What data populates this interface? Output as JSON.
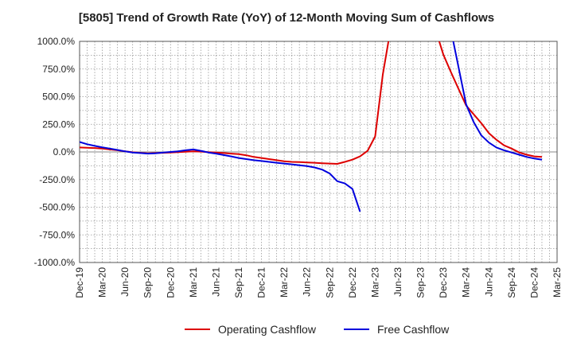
{
  "chart_data": {
    "type": "line",
    "title": "[5805]  Trend of Growth Rate (YoY) of 12-Month Moving Sum of Cashflows",
    "xlabel": "",
    "ylabel": "",
    "ylim": [
      -1000,
      1000
    ],
    "y_ticks": [
      "1000.0%",
      "750.0%",
      "500.0%",
      "250.0%",
      "0.0%",
      "-250.0%",
      "-500.0%",
      "-750.0%",
      "-1000.0%"
    ],
    "y_tick_values": [
      1000,
      750,
      500,
      250,
      0,
      -250,
      -500,
      -750,
      -1000
    ],
    "x_ticks": [
      "Dec-19",
      "Mar-20",
      "Jun-20",
      "Sep-20",
      "Dec-20",
      "Mar-21",
      "Jun-21",
      "Sep-21",
      "Dec-21",
      "Mar-22",
      "Jun-22",
      "Sep-22",
      "Dec-22",
      "Mar-23",
      "Jun-23",
      "Sep-23",
      "Dec-23",
      "Mar-24",
      "Jun-24",
      "Sep-24",
      "Dec-24",
      "Mar-25"
    ],
    "grid": true,
    "legend_position": "bottom",
    "series": [
      {
        "name": "Operating Cashflow",
        "color": "#dd0000",
        "points": [
          [
            "Dec-19",
            40
          ],
          [
            "Jan-20",
            38
          ],
          [
            "Feb-20",
            35
          ],
          [
            "Mar-20",
            30
          ],
          [
            "Apr-20",
            22
          ],
          [
            "May-20",
            15
          ],
          [
            "Jun-20",
            5
          ],
          [
            "Jul-20",
            -3
          ],
          [
            "Aug-20",
            -8
          ],
          [
            "Sep-20",
            -12
          ],
          [
            "Oct-20",
            -10
          ],
          [
            "Nov-20",
            -8
          ],
          [
            "Dec-20",
            -5
          ],
          [
            "Jan-21",
            -2
          ],
          [
            "Feb-21",
            2
          ],
          [
            "Mar-21",
            5
          ],
          [
            "Apr-21",
            3
          ],
          [
            "May-21",
            -2
          ],
          [
            "Jun-21",
            -5
          ],
          [
            "Jul-21",
            -10
          ],
          [
            "Aug-21",
            -15
          ],
          [
            "Sep-21",
            -20
          ],
          [
            "Oct-21",
            -30
          ],
          [
            "Nov-21",
            -45
          ],
          [
            "Dec-21",
            -55
          ],
          [
            "Jan-22",
            -65
          ],
          [
            "Feb-22",
            -75
          ],
          [
            "Mar-22",
            -85
          ],
          [
            "Apr-22",
            -90
          ],
          [
            "May-22",
            -92
          ],
          [
            "Jun-22",
            -95
          ],
          [
            "Jul-22",
            -98
          ],
          [
            "Aug-22",
            -102
          ],
          [
            "Sep-22",
            -105
          ],
          [
            "Oct-22",
            -108
          ],
          [
            "Nov-22",
            -90
          ],
          [
            "Dec-22",
            -70
          ],
          [
            "Jan-23",
            -40
          ],
          [
            "Feb-23",
            10
          ],
          [
            "Mar-23",
            140
          ],
          [
            "Apr-23",
            700
          ],
          [
            "May-23",
            1100
          ]
        ]
      },
      {
        "name": "Operating Cashflow",
        "color": "#dd0000",
        "points": [
          [
            "Nov-23",
            1100
          ],
          [
            "Dec-23",
            880
          ],
          [
            "Jan-24",
            720
          ],
          [
            "Feb-24",
            570
          ],
          [
            "Mar-24",
            420
          ],
          [
            "Apr-24",
            340
          ],
          [
            "May-24",
            260
          ],
          [
            "Jun-24",
            170
          ],
          [
            "Jul-24",
            110
          ],
          [
            "Aug-24",
            60
          ],
          [
            "Sep-24",
            30
          ],
          [
            "Oct-24",
            -5
          ],
          [
            "Nov-24",
            -25
          ],
          [
            "Dec-24",
            -40
          ],
          [
            "Jan-25",
            -45
          ]
        ]
      },
      {
        "name": "Free Cashflow",
        "color": "#0000dd",
        "points": [
          [
            "Dec-19",
            90
          ],
          [
            "Jan-20",
            70
          ],
          [
            "Feb-20",
            55
          ],
          [
            "Mar-20",
            42
          ],
          [
            "Apr-20",
            30
          ],
          [
            "May-20",
            18
          ],
          [
            "Jun-20",
            5
          ],
          [
            "Jul-20",
            -5
          ],
          [
            "Aug-20",
            -10
          ],
          [
            "Sep-20",
            -15
          ],
          [
            "Oct-20",
            -12
          ],
          [
            "Nov-20",
            -5
          ],
          [
            "Dec-20",
            0
          ],
          [
            "Jan-21",
            5
          ],
          [
            "Feb-21",
            15
          ],
          [
            "Mar-21",
            22
          ],
          [
            "Apr-21",
            10
          ],
          [
            "May-21",
            -5
          ],
          [
            "Jun-21",
            -15
          ],
          [
            "Jul-21",
            -28
          ],
          [
            "Aug-21",
            -40
          ],
          [
            "Sep-21",
            -55
          ],
          [
            "Oct-21",
            -65
          ],
          [
            "Nov-21",
            -75
          ],
          [
            "Dec-21",
            -82
          ],
          [
            "Jan-22",
            -90
          ],
          [
            "Feb-22",
            -98
          ],
          [
            "Mar-22",
            -105
          ],
          [
            "Apr-22",
            -112
          ],
          [
            "May-22",
            -120
          ],
          [
            "Jun-22",
            -128
          ],
          [
            "Jul-22",
            -140
          ],
          [
            "Aug-22",
            -160
          ],
          [
            "Sep-22",
            -195
          ],
          [
            "Oct-22",
            -265
          ],
          [
            "Nov-22",
            -285
          ],
          [
            "Dec-22",
            -335
          ],
          [
            "Jan-23",
            -540
          ]
        ]
      },
      {
        "name": "Free Cashflow",
        "color": "#0000dd",
        "points": [
          [
            "Jan-24",
            1100
          ],
          [
            "Mar-24",
            430
          ],
          [
            "Apr-24",
            270
          ],
          [
            "May-24",
            150
          ],
          [
            "Jun-24",
            85
          ],
          [
            "Jul-24",
            40
          ],
          [
            "Aug-24",
            15
          ],
          [
            "Sep-24",
            -5
          ],
          [
            "Oct-24",
            -25
          ],
          [
            "Nov-24",
            -45
          ],
          [
            "Dec-24",
            -60
          ],
          [
            "Jan-25",
            -70
          ]
        ]
      }
    ],
    "legend": [
      {
        "label": "Operating Cashflow",
        "color": "#dd0000"
      },
      {
        "label": "Free Cashflow",
        "color": "#0000dd"
      }
    ]
  }
}
